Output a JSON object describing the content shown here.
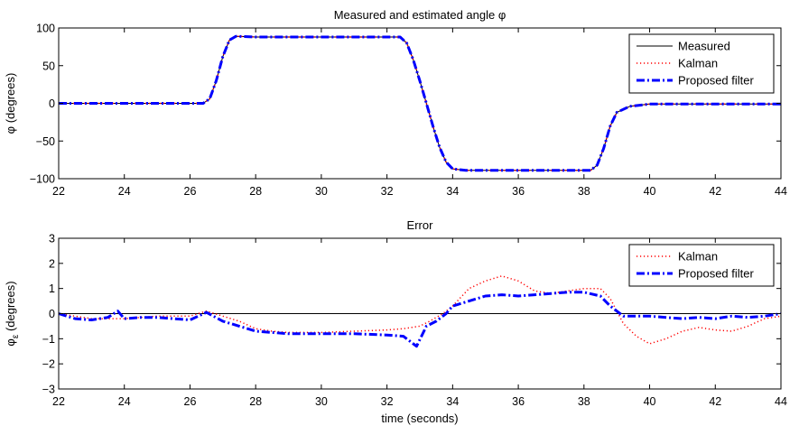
{
  "chart_data": [
    {
      "type": "line",
      "title": "Measured and estimated angle φ",
      "xlabel": "",
      "ylabel": "φ (degrees)",
      "xlim": [
        22,
        44
      ],
      "ylim": [
        -100,
        100
      ],
      "xticks": [
        22,
        24,
        26,
        28,
        30,
        32,
        34,
        36,
        38,
        40,
        42,
        44
      ],
      "yticks": [
        -100,
        -50,
        0,
        50,
        100
      ],
      "grid": false,
      "legend_position": "top-right",
      "legend": [
        "Measured",
        "Kalman",
        "Proposed filter"
      ],
      "series": [
        {
          "name": "Measured",
          "color": "#000000",
          "style": "solid",
          "x": [
            22,
            26.4,
            26.6,
            26.8,
            27.0,
            27.2,
            27.4,
            28,
            30,
            32.4,
            32.6,
            32.8,
            33.0,
            33.2,
            33.4,
            33.6,
            33.8,
            34.0,
            34.4,
            36,
            38.2,
            38.4,
            38.6,
            38.8,
            39.0,
            39.4,
            40.0,
            44
          ],
          "y": [
            0,
            0,
            6,
            30,
            62,
            84,
            89,
            88,
            88,
            88,
            80,
            58,
            30,
            0,
            -30,
            -58,
            -78,
            -87,
            -89,
            -89,
            -89,
            -82,
            -60,
            -30,
            -12,
            -4,
            -1,
            -1
          ]
        },
        {
          "name": "Kalman",
          "color": "#ff0000",
          "style": "dotted",
          "x": [
            22,
            26.4,
            26.6,
            26.8,
            27.0,
            27.2,
            27.4,
            28,
            30,
            32.4,
            32.6,
            32.8,
            33.0,
            33.2,
            33.4,
            33.6,
            33.8,
            34.0,
            34.4,
            36,
            38.2,
            38.4,
            38.6,
            38.8,
            39.0,
            39.4,
            40.0,
            44
          ],
          "y": [
            0,
            0,
            6,
            30,
            62,
            84,
            89,
            88,
            88,
            88,
            80,
            58,
            30,
            0,
            -30,
            -58,
            -78,
            -87,
            -89,
            -89,
            -89,
            -82,
            -60,
            -30,
            -12,
            -4,
            -1,
            -1
          ]
        },
        {
          "name": "Proposed filter",
          "color": "#0000ff",
          "style": "dashdot",
          "x": [
            22,
            26.4,
            26.6,
            26.8,
            27.0,
            27.2,
            27.4,
            28,
            30,
            32.4,
            32.6,
            32.8,
            33.0,
            33.2,
            33.4,
            33.6,
            33.8,
            34.0,
            34.4,
            36,
            38.2,
            38.4,
            38.6,
            38.8,
            39.0,
            39.4,
            40.0,
            44
          ],
          "y": [
            0,
            0,
            6,
            30,
            62,
            84,
            89,
            88,
            88,
            88,
            80,
            58,
            30,
            0,
            -30,
            -58,
            -78,
            -87,
            -89,
            -89,
            -89,
            -82,
            -60,
            -30,
            -12,
            -4,
            -1,
            -1
          ]
        }
      ]
    },
    {
      "type": "line",
      "title": "Error",
      "xlabel": "time (seconds)",
      "ylabel": "φε (degrees)",
      "xlim": [
        22,
        44
      ],
      "ylim": [
        -3,
        3
      ],
      "xticks": [
        22,
        24,
        26,
        28,
        30,
        32,
        34,
        36,
        38,
        40,
        42,
        44
      ],
      "yticks": [
        -3,
        -2,
        -1,
        0,
        1,
        2,
        3
      ],
      "grid": false,
      "zero_line": true,
      "legend_position": "top-right",
      "legend": [
        "Kalman",
        "Proposed filter"
      ],
      "series": [
        {
          "name": "Kalman",
          "color": "#ff0000",
          "style": "dotted",
          "x": [
            22,
            23,
            24,
            25,
            26,
            26.5,
            27,
            27.5,
            28,
            28.5,
            29,
            30,
            31,
            32,
            32.5,
            33,
            33.3,
            33.7,
            34,
            34.5,
            35,
            35.5,
            36,
            36.5,
            37,
            37.5,
            38,
            38.5,
            38.8,
            39.2,
            39.6,
            40,
            40.5,
            41,
            41.5,
            42,
            42.5,
            43,
            43.5,
            44
          ],
          "y": [
            0,
            -0.2,
            -0.2,
            -0.1,
            -0.1,
            0.1,
            -0.1,
            -0.3,
            -0.6,
            -0.7,
            -0.75,
            -0.75,
            -0.7,
            -0.65,
            -0.6,
            -0.5,
            -0.3,
            0,
            0.3,
            1.0,
            1.3,
            1.5,
            1.3,
            0.9,
            0.8,
            0.9,
            1.0,
            1.0,
            0.6,
            -0.4,
            -0.9,
            -1.2,
            -1.0,
            -0.7,
            -0.55,
            -0.65,
            -0.7,
            -0.5,
            -0.2,
            -0.1
          ]
        },
        {
          "name": "Proposed filter",
          "color": "#0000ff",
          "style": "dashdot",
          "x": [
            22,
            22.5,
            23,
            23.5,
            23.8,
            24,
            24.5,
            25,
            25.5,
            26,
            26.5,
            27,
            27.5,
            28,
            28.5,
            29,
            30,
            31,
            32,
            32.5,
            32.9,
            33.2,
            33.5,
            33.8,
            34,
            34.5,
            35,
            35.5,
            36,
            36.5,
            37,
            37.5,
            38,
            38.5,
            38.8,
            39.2,
            39.6,
            40,
            40.5,
            41,
            41.5,
            42,
            42.5,
            43,
            43.5,
            44
          ],
          "y": [
            0,
            -0.2,
            -0.25,
            -0.15,
            0.1,
            -0.2,
            -0.15,
            -0.15,
            -0.2,
            -0.25,
            0.05,
            -0.3,
            -0.5,
            -0.7,
            -0.75,
            -0.8,
            -0.8,
            -0.8,
            -0.85,
            -0.9,
            -1.3,
            -0.5,
            -0.3,
            0.0,
            0.3,
            0.5,
            0.7,
            0.75,
            0.7,
            0.75,
            0.8,
            0.85,
            0.85,
            0.7,
            0.3,
            -0.1,
            -0.1,
            -0.1,
            -0.15,
            -0.2,
            -0.15,
            -0.2,
            -0.1,
            -0.15,
            -0.1,
            0.0
          ]
        }
      ]
    }
  ]
}
